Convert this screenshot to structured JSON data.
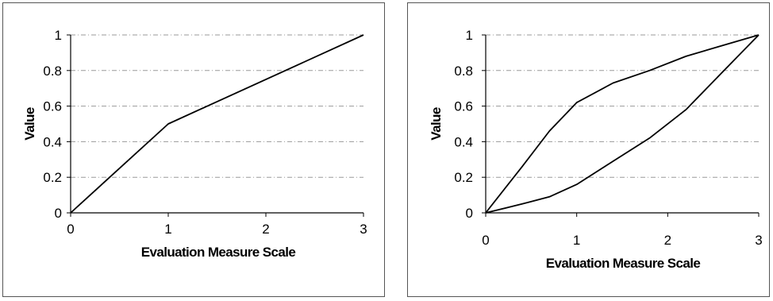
{
  "chart_data": [
    {
      "type": "line",
      "xlabel": "Evaluation Measure Scale",
      "ylabel": "Value",
      "xlim": [
        0,
        3
      ],
      "ylim": [
        0,
        1
      ],
      "xticks": [
        0,
        1,
        2,
        3
      ],
      "xtick_labels": [
        "0",
        "1",
        "2",
        "3"
      ],
      "yticks": [
        0,
        0.2,
        0.4,
        0.6,
        0.8,
        1
      ],
      "ytick_labels": [
        "0",
        "0.2",
        "0.4",
        "0.6",
        "0.8",
        "1"
      ],
      "grid": true,
      "series": [
        {
          "x": [
            0,
            1,
            3
          ],
          "y": [
            0,
            0.5,
            1
          ]
        }
      ]
    },
    {
      "type": "line",
      "xlabel": "Evaluation Measure Scale",
      "ylabel": "Value",
      "xlim": [
        0,
        3
      ],
      "ylim": [
        0,
        1
      ],
      "xticks": [
        0,
        1,
        2,
        3
      ],
      "xtick_labels": [
        "0",
        "1",
        "2",
        "3"
      ],
      "yticks": [
        0,
        0.2,
        0.4,
        0.6,
        0.8,
        1
      ],
      "ytick_labels": [
        "0",
        "0.2",
        "0.4",
        "0.6",
        "0.8",
        "1"
      ],
      "grid": true,
      "series": [
        {
          "x": [
            0,
            0.4,
            0.7,
            1.0,
            1.4,
            1.8,
            2.2,
            2.6,
            3.0
          ],
          "y": [
            0,
            0.26,
            0.46,
            0.62,
            0.73,
            0.8,
            0.88,
            0.94,
            1.0
          ]
        },
        {
          "x": [
            0,
            0.4,
            0.7,
            1.0,
            1.4,
            1.8,
            2.2,
            2.6,
            3.0
          ],
          "y": [
            0,
            0.05,
            0.09,
            0.16,
            0.29,
            0.42,
            0.58,
            0.79,
            1.0
          ]
        }
      ]
    }
  ]
}
